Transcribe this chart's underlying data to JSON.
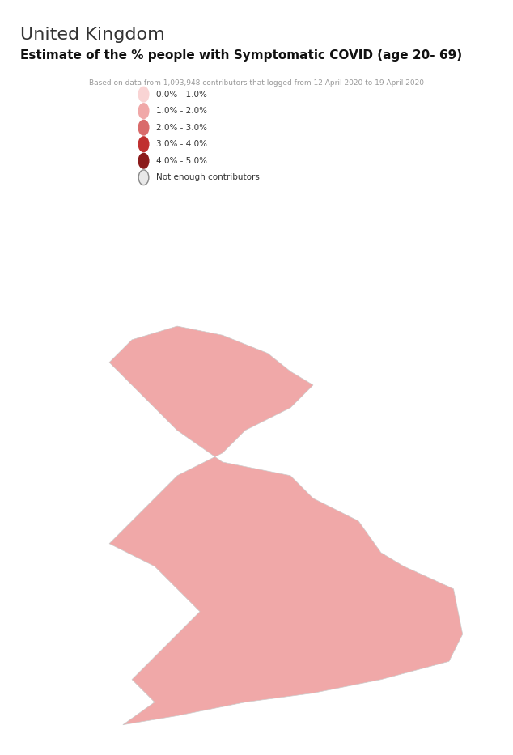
{
  "title_country": "United Kingdom",
  "title_main": "Estimate of the % people with Symptomatic COVID (age 20- 69)",
  "subtitle": "Based on data from 1,093,948 contributors that logged from 12 April 2020 to 19 April 2020",
  "legend_labels": [
    "0.0% - 1.0%",
    "1.0% - 2.0%",
    "2.0% - 3.0%",
    "3.0% - 4.0%",
    "4.0% - 5.0%",
    "Not enough contributors"
  ],
  "legend_colors": [
    "#f9d4d4",
    "#f0a8a8",
    "#d96b6b",
    "#c03030",
    "#8b1a1a",
    "#d0d0d0"
  ],
  "color_map": {
    "0-1": "#f9d4d4",
    "1-2": "#f0a8a8",
    "2-3": "#d96b6b",
    "3-4": "#c03030",
    "4-5": "#8b1a1a",
    "none": "#d0d0d0"
  },
  "background_color": "#ffffff",
  "fig_width": 6.34,
  "fig_height": 9.33
}
